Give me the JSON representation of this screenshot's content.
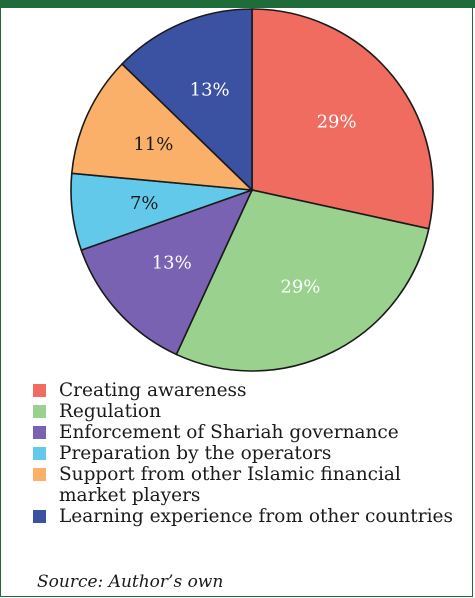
{
  "chart_data": {
    "type": "pie",
    "title": "",
    "categories": [
      "Creating awareness",
      "Regulation",
      "Enforcement of Shariah governance",
      "Preparation by the operators",
      "Support from other Islamic financial market players",
      "Learning experience from other countries"
    ],
    "values": [
      29,
      29,
      13,
      7,
      11,
      13
    ],
    "labels": [
      "29%",
      "29%",
      "13%",
      "7%",
      "11%",
      "13%"
    ],
    "colors": [
      "#f06b60",
      "#9bd18e",
      "#7a62b2",
      "#62c9ea",
      "#fbb06a",
      "#3b52a3"
    ],
    "label_colors": [
      "#ffffff",
      "#ffffff",
      "#ffffff",
      "#1a1a1a",
      "#1a1a1a",
      "#ffffff"
    ],
    "start_angle": "12 o'clock",
    "direction": "clockwise",
    "legend_position": "bottom-left"
  },
  "source": "Source: Author’s own"
}
